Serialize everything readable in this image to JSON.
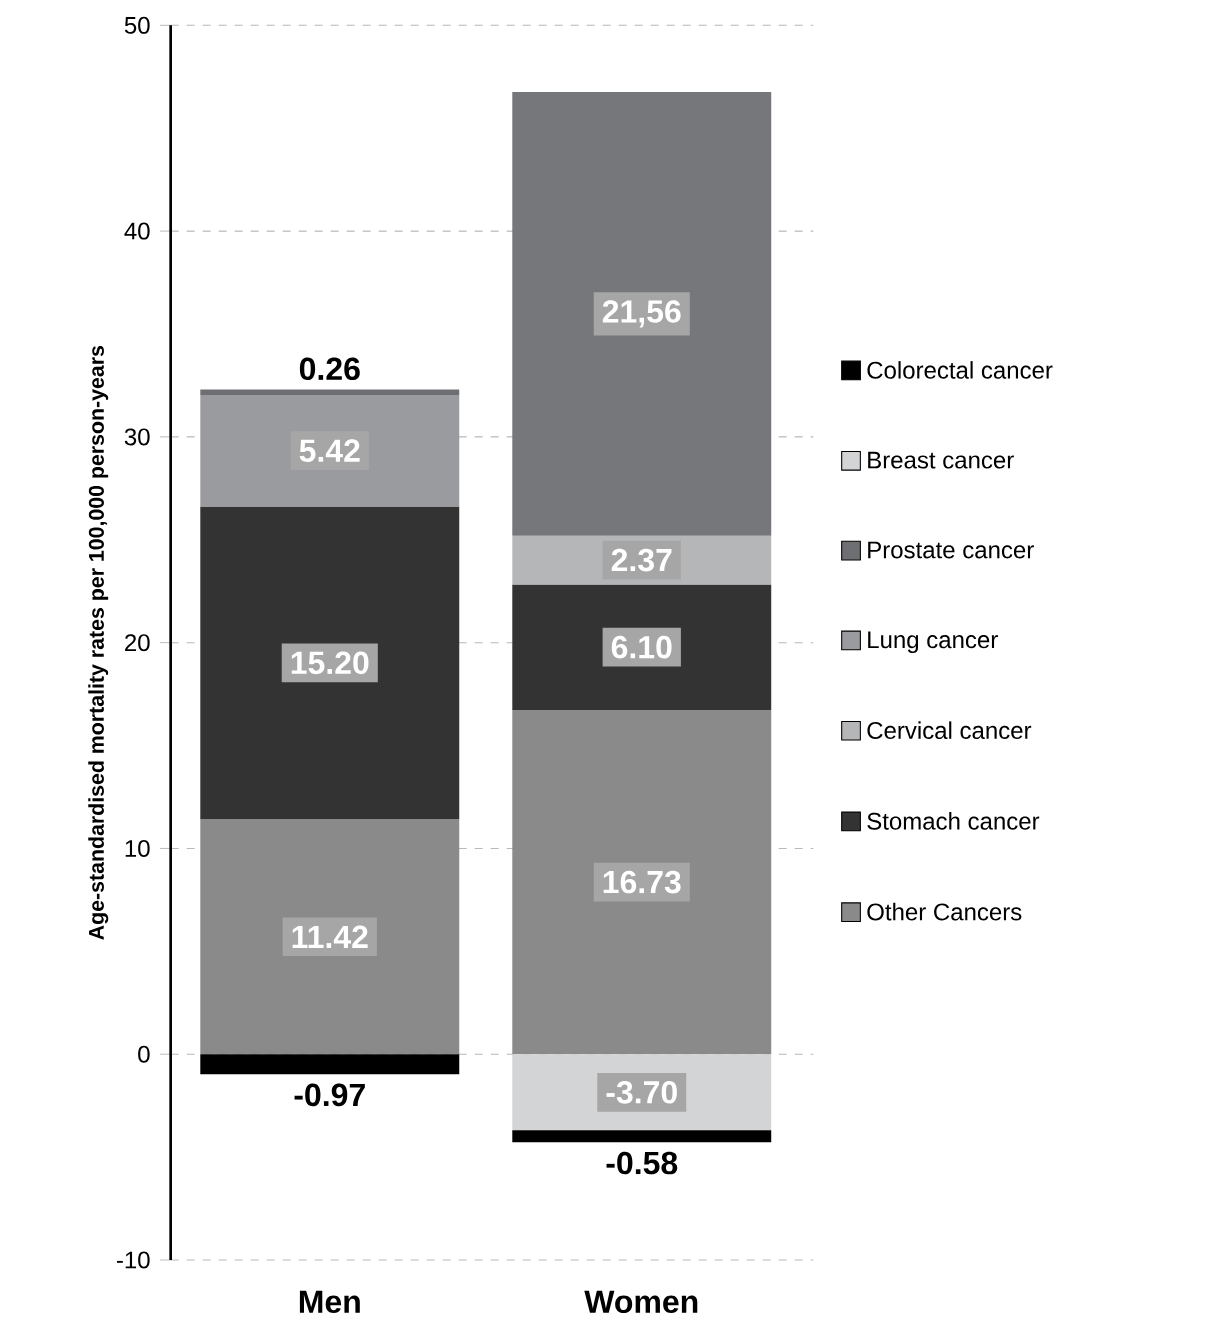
{
  "chart_data": {
    "type": "bar",
    "stacked": true,
    "ylabel": "Age-standardised mortality rates per 100,000 person-years",
    "categories": [
      "Men",
      "Women"
    ],
    "series": [
      {
        "name": "Other Cancers",
        "color": "#8a8a8a",
        "values": [
          11.42,
          16.73
        ],
        "value_labels": [
          "11.42",
          "16.73"
        ]
      },
      {
        "name": "Stomach cancer",
        "color": "#333333",
        "values": [
          15.2,
          6.1
        ],
        "value_labels": [
          "15.20",
          "6.10"
        ]
      },
      {
        "name": "Cervical cancer",
        "color": "#b5b6b8",
        "values": [
          null,
          2.37
        ],
        "value_labels": [
          null,
          "2.37"
        ]
      },
      {
        "name": "Lung cancer",
        "color": "#9a9b9e",
        "colors": [
          "#9a9b9e",
          "#76777b"
        ],
        "values": [
          5.42,
          21.56
        ],
        "value_labels": [
          "5.42",
          "21,56"
        ]
      },
      {
        "name": "Prostate cancer",
        "color": "#6e6f73",
        "values": [
          0.26,
          null
        ],
        "value_labels": [
          "0.26",
          null
        ]
      },
      {
        "name": "Breast cancer",
        "color": "#d3d4d6",
        "values": [
          null,
          -3.7
        ],
        "value_labels": [
          null,
          "-3.70"
        ]
      },
      {
        "name": "Colorectal cancer",
        "color": "#000000",
        "values": [
          -0.97,
          -0.58
        ],
        "value_labels": [
          "-0.97",
          "-0.58"
        ]
      }
    ],
    "ylim": [
      -10,
      50
    ],
    "yticks": [
      -10,
      0,
      10,
      20,
      30,
      40,
      50
    ],
    "grid": "y",
    "legend": "right"
  }
}
